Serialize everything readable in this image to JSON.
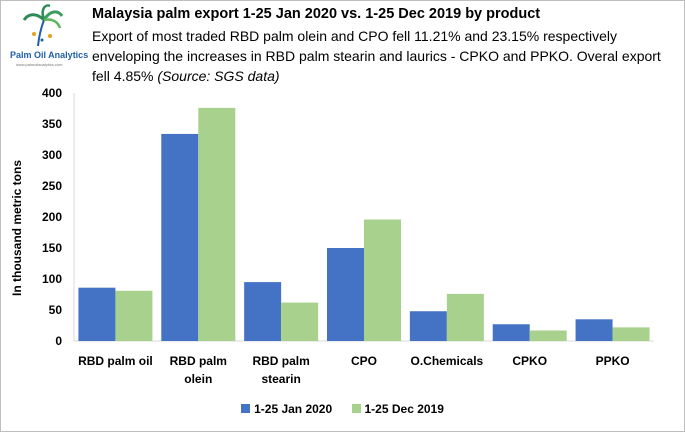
{
  "logo": {
    "name": "Palm Oil Analytics",
    "tagline": "www.palmoilanalytics.com"
  },
  "header": {
    "title": "Malaysia palm export 1-25 Jan 2020 vs. 1-25 Dec 2019 by product",
    "subtitle": "Export of most traded RBD palm olein and CPO fell 11.21% and 23.15% respectively enveloping the increases in RBD palm stearin and laurics - CPKO and PPKO. Overal export fell 4.85%",
    "source": "(Source: SGS data)"
  },
  "colors": {
    "series1": "#4472c4",
    "series2": "#a9d18e",
    "axis": "#d9d9d9"
  },
  "chart_data": {
    "type": "bar",
    "title": "Malaysia palm export 1-25 Jan 2020 vs. 1-25 Dec 2019 by product",
    "xlabel": "",
    "ylabel": "In thousand metric tons",
    "ylim": [
      0,
      400
    ],
    "yticks": [
      0,
      50,
      100,
      150,
      200,
      250,
      300,
      350,
      400
    ],
    "grid": false,
    "legend_position": "bottom",
    "categories": [
      [
        "RBD palm oil"
      ],
      [
        "RBD palm",
        "olein"
      ],
      [
        "RBD palm",
        "stearin"
      ],
      [
        "CPO"
      ],
      [
        "O.Chemicals"
      ],
      [
        "CPKO"
      ],
      [
        "PPKO"
      ]
    ],
    "series": [
      {
        "name": "1-25 Jan 2020",
        "values": [
          86,
          334,
          95,
          150,
          48,
          27,
          35
        ]
      },
      {
        "name": "1-25 Dec 2019",
        "values": [
          81,
          376,
          62,
          196,
          76,
          17,
          22
        ]
      }
    ]
  }
}
